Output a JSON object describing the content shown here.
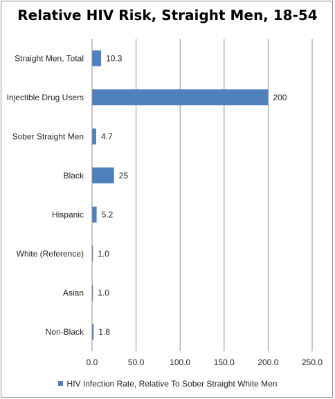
{
  "chart_data": {
    "type": "bar",
    "orientation": "horizontal",
    "title": "Relative HIV Risk, Straight Men, 18-54",
    "categories": [
      "Straight Men, Total",
      "Injectible Drug Users",
      "Sober Straight Men",
      "Black",
      "Hispanic",
      "White (Reference)",
      "Asian",
      "Non-Black"
    ],
    "series": [
      {
        "name": "HIV Infection Rate, Relative To Sober Straight White Men",
        "values": [
          10.3,
          200,
          4.7,
          25,
          5.2,
          1.0,
          1.0,
          1.8
        ],
        "value_labels": [
          "10.3",
          "200",
          "4.7",
          "25",
          "5.2",
          "1.0",
          "1.0",
          "1.8"
        ]
      }
    ],
    "xlim": [
      0,
      250
    ],
    "x_ticks": [
      0,
      50,
      100,
      150,
      200,
      250
    ],
    "x_tick_labels": [
      "0.0",
      "50.0",
      "100.0",
      "150.0",
      "200.0",
      "250.0"
    ],
    "grid": true,
    "legend_position": "bottom",
    "bar_color": "#4f81bd",
    "grid_color": "#8c8c8c"
  }
}
